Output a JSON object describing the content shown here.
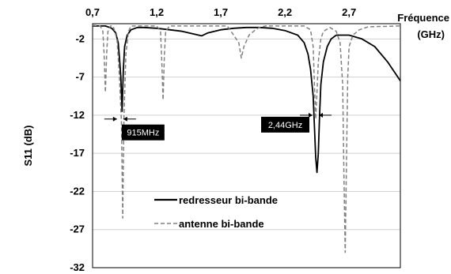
{
  "chart_data": {
    "type": "line",
    "x_axis": {
      "label": "Fréquence",
      "unit": "(GHz)",
      "position": "top",
      "range": [
        0.7,
        3.1
      ],
      "ticks": [
        0.7,
        1.2,
        1.7,
        2.2,
        2.7
      ],
      "tick_labels": [
        "0,7",
        "1,2",
        "1,7",
        "2,2",
        "2,7"
      ]
    },
    "y_axis": {
      "label": "S11 (dB)",
      "range": [
        -32,
        0
      ],
      "ticks": [
        -2,
        -7,
        -12,
        -17,
        -22,
        -27,
        -32
      ],
      "tick_labels": [
        "-2",
        "-7",
        "-12",
        "-17",
        "-22",
        "-27",
        "-32"
      ]
    },
    "grid": "horizontal",
    "legend_position": "bottom-left",
    "series": [
      {
        "name": "redresseur bi-bande",
        "style": "solid",
        "color": "#000000",
        "points": [
          [
            0.7,
            -0.3
          ],
          [
            0.8,
            -0.3
          ],
          [
            0.85,
            -0.6
          ],
          [
            0.88,
            -1.2
          ],
          [
            0.9,
            -2.5
          ],
          [
            0.91,
            -4.5
          ],
          [
            0.92,
            -7.0
          ],
          [
            0.93,
            -11.5
          ],
          [
            0.94,
            -6.0
          ],
          [
            0.95,
            -3.0
          ],
          [
            0.97,
            -1.5
          ],
          [
            1.0,
            -0.8
          ],
          [
            1.05,
            -0.5
          ],
          [
            1.1,
            -0.5
          ],
          [
            1.2,
            -0.6
          ],
          [
            1.3,
            -0.8
          ],
          [
            1.4,
            -1.0
          ],
          [
            1.5,
            -1.4
          ],
          [
            1.55,
            -1.6
          ],
          [
            1.6,
            -1.2
          ],
          [
            1.7,
            -0.8
          ],
          [
            1.8,
            -0.6
          ],
          [
            1.9,
            -0.5
          ],
          [
            2.0,
            -0.5
          ],
          [
            2.1,
            -0.6
          ],
          [
            2.2,
            -0.9
          ],
          [
            2.3,
            -1.5
          ],
          [
            2.35,
            -2.5
          ],
          [
            2.38,
            -4.0
          ],
          [
            2.4,
            -6.0
          ],
          [
            2.42,
            -9.5
          ],
          [
            2.43,
            -13.5
          ],
          [
            2.44,
            -17.5
          ],
          [
            2.45,
            -19.5
          ],
          [
            2.46,
            -17.0
          ],
          [
            2.47,
            -12.0
          ],
          [
            2.48,
            -8.0
          ],
          [
            2.5,
            -5.0
          ],
          [
            2.53,
            -3.0
          ],
          [
            2.56,
            -2.0
          ],
          [
            2.6,
            -1.5
          ],
          [
            2.7,
            -1.5
          ],
          [
            2.8,
            -2.0
          ],
          [
            2.9,
            -3.0
          ],
          [
            3.0,
            -5.0
          ],
          [
            3.1,
            -7.5
          ]
        ]
      },
      {
        "name": "antenne bi-bande",
        "style": "dashed",
        "color": "#808080",
        "points": [
          [
            0.7,
            -0.2
          ],
          [
            0.76,
            -0.3
          ],
          [
            0.78,
            -1.0
          ],
          [
            0.79,
            -4.0
          ],
          [
            0.8,
            -9.0
          ],
          [
            0.81,
            -4.0
          ],
          [
            0.82,
            -1.0
          ],
          [
            0.84,
            -0.3
          ],
          [
            0.86,
            -0.3
          ],
          [
            0.89,
            -2.0
          ],
          [
            0.91,
            -7.0
          ],
          [
            0.925,
            -13.0
          ],
          [
            0.935,
            -25.5
          ],
          [
            0.945,
            -12.0
          ],
          [
            0.96,
            -4.0
          ],
          [
            0.98,
            -1.0
          ],
          [
            1.0,
            -0.3
          ],
          [
            1.2,
            -0.3
          ],
          [
            1.23,
            -1.0
          ],
          [
            1.24,
            -5.0
          ],
          [
            1.25,
            -10.0
          ],
          [
            1.26,
            -4.0
          ],
          [
            1.27,
            -1.0
          ],
          [
            1.3,
            -0.3
          ],
          [
            1.75,
            -0.3
          ],
          [
            1.8,
            -1.5
          ],
          [
            1.84,
            -2.5
          ],
          [
            1.86,
            -4.5
          ],
          [
            1.88,
            -3.0
          ],
          [
            1.92,
            -1.5
          ],
          [
            1.97,
            -0.8
          ],
          [
            2.0,
            -0.5
          ],
          [
            2.05,
            -0.3
          ],
          [
            2.35,
            -0.3
          ],
          [
            2.4,
            -0.8
          ],
          [
            2.42,
            -3.0
          ],
          [
            2.43,
            -8.0
          ],
          [
            2.44,
            -12.5
          ],
          [
            2.45,
            -9.0
          ],
          [
            2.46,
            -5.0
          ],
          [
            2.48,
            -2.0
          ],
          [
            2.5,
            -1.0
          ],
          [
            2.55,
            -0.5
          ],
          [
            2.6,
            -1.0
          ],
          [
            2.63,
            -2.5
          ],
          [
            2.65,
            -8.0
          ],
          [
            2.66,
            -20.0
          ],
          [
            2.67,
            -30.0
          ],
          [
            2.68,
            -18.0
          ],
          [
            2.69,
            -7.0
          ],
          [
            2.7,
            -3.0
          ],
          [
            2.73,
            -1.5
          ],
          [
            2.78,
            -0.8
          ],
          [
            2.85,
            -0.4
          ],
          [
            3.1,
            -0.3
          ]
        ]
      }
    ],
    "annotations": [
      {
        "text": "915MHz",
        "x": 0.915,
        "y": -12.5
      },
      {
        "text": "2,44GHz",
        "x": 2.44,
        "y": -12.0
      }
    ]
  }
}
